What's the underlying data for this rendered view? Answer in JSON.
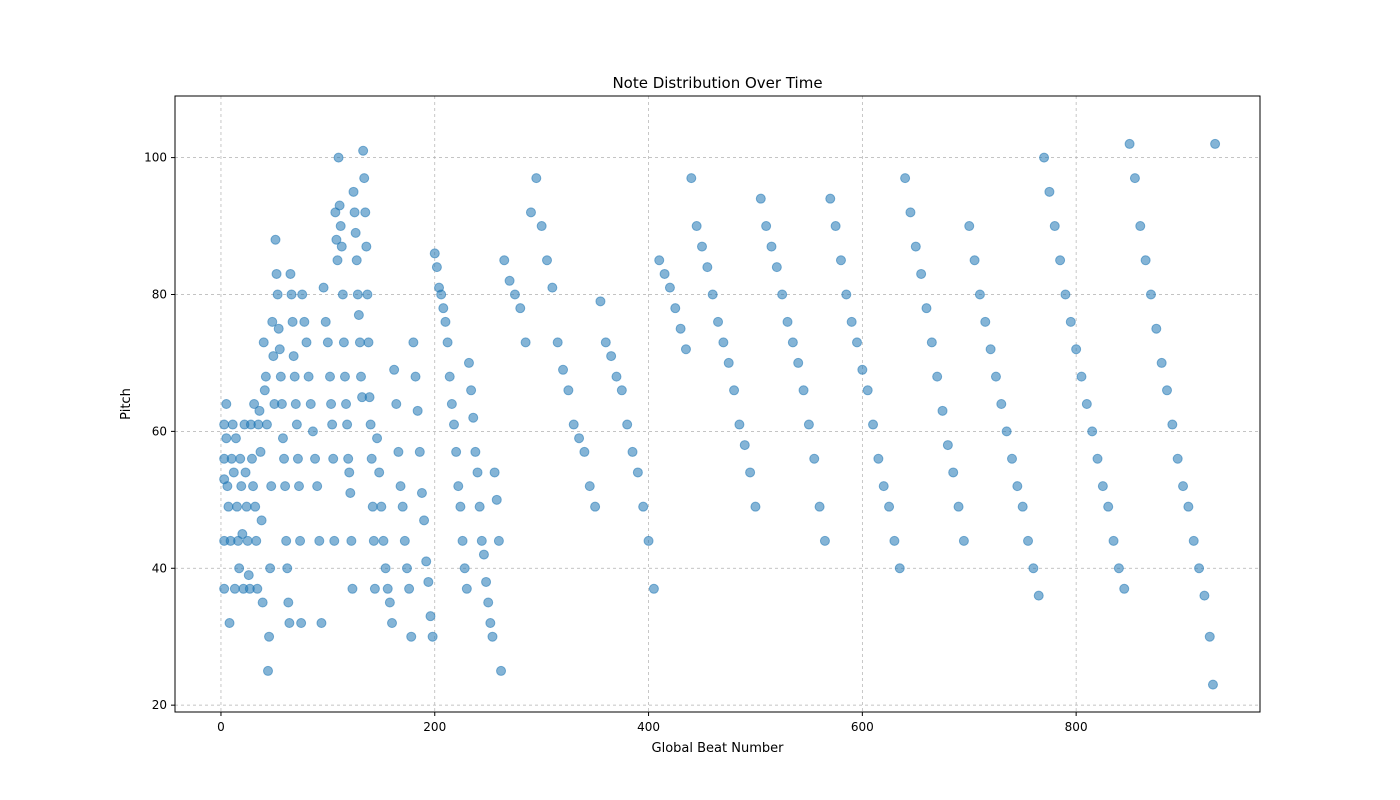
{
  "chart_data": {
    "type": "scatter",
    "title": "Note Distribution Over Time",
    "xlabel": "Global Beat Number",
    "ylabel": "Pitch",
    "xlim": [
      -43,
      972
    ],
    "ylim": [
      19,
      109
    ],
    "xticks": [
      0,
      200,
      400,
      600,
      800
    ],
    "yticks": [
      20,
      40,
      60,
      80,
      100
    ],
    "x_tick_labels": [
      "0",
      "200",
      "400",
      "600",
      "800"
    ],
    "y_tick_labels": [
      "20",
      "40",
      "60",
      "80",
      "100"
    ],
    "grid": true,
    "marker_color": "#1f77b4",
    "marker_alpha": 0.55,
    "series": [
      {
        "points": [
          [
            3,
            61
          ],
          [
            3,
            56
          ],
          [
            3,
            53
          ],
          [
            3,
            44
          ],
          [
            3,
            37
          ],
          [
            5,
            64
          ],
          [
            5,
            59
          ],
          [
            6,
            52
          ],
          [
            7,
            49
          ],
          [
            8,
            32
          ],
          [
            9,
            44
          ],
          [
            10,
            56
          ],
          [
            11,
            61
          ],
          [
            12,
            54
          ],
          [
            13,
            37
          ],
          [
            14,
            59
          ],
          [
            15,
            49
          ],
          [
            16,
            44
          ],
          [
            17,
            40
          ],
          [
            18,
            56
          ],
          [
            19,
            52
          ],
          [
            20,
            45
          ],
          [
            21,
            37
          ],
          [
            22,
            61
          ],
          [
            23,
            54
          ],
          [
            24,
            49
          ],
          [
            25,
            44
          ],
          [
            26,
            39
          ],
          [
            27,
            37
          ],
          [
            28,
            61
          ],
          [
            29,
            56
          ],
          [
            30,
            52
          ],
          [
            31,
            64
          ],
          [
            32,
            49
          ],
          [
            33,
            44
          ],
          [
            34,
            37
          ],
          [
            35,
            61
          ],
          [
            36,
            63
          ],
          [
            37,
            57
          ],
          [
            38,
            47
          ],
          [
            39,
            35
          ],
          [
            40,
            73
          ],
          [
            41,
            66
          ],
          [
            42,
            68
          ],
          [
            43,
            61
          ],
          [
            44,
            25
          ],
          [
            45,
            30
          ],
          [
            46,
            40
          ],
          [
            47,
            52
          ],
          [
            48,
            76
          ],
          [
            49,
            71
          ],
          [
            50,
            64
          ],
          [
            51,
            88
          ],
          [
            52,
            83
          ],
          [
            53,
            80
          ],
          [
            54,
            75
          ],
          [
            55,
            72
          ],
          [
            56,
            68
          ],
          [
            57,
            64
          ],
          [
            58,
            59
          ],
          [
            59,
            56
          ],
          [
            60,
            52
          ],
          [
            61,
            44
          ],
          [
            62,
            40
          ],
          [
            63,
            35
          ],
          [
            64,
            32
          ],
          [
            65,
            83
          ],
          [
            66,
            80
          ],
          [
            67,
            76
          ],
          [
            68,
            71
          ],
          [
            69,
            68
          ],
          [
            70,
            64
          ],
          [
            71,
            61
          ],
          [
            72,
            56
          ],
          [
            73,
            52
          ],
          [
            74,
            44
          ],
          [
            75,
            32
          ],
          [
            76,
            80
          ],
          [
            78,
            76
          ],
          [
            80,
            73
          ],
          [
            82,
            68
          ],
          [
            84,
            64
          ],
          [
            86,
            60
          ],
          [
            88,
            56
          ],
          [
            90,
            52
          ],
          [
            92,
            44
          ],
          [
            94,
            32
          ],
          [
            96,
            81
          ],
          [
            98,
            76
          ],
          [
            100,
            73
          ],
          [
            102,
            68
          ],
          [
            103,
            64
          ],
          [
            104,
            61
          ],
          [
            105,
            56
          ],
          [
            106,
            44
          ],
          [
            107,
            92
          ],
          [
            108,
            88
          ],
          [
            109,
            85
          ],
          [
            110,
            100
          ],
          [
            111,
            93
          ],
          [
            112,
            90
          ],
          [
            113,
            87
          ],
          [
            114,
            80
          ],
          [
            115,
            73
          ],
          [
            116,
            68
          ],
          [
            117,
            64
          ],
          [
            118,
            61
          ],
          [
            119,
            56
          ],
          [
            120,
            54
          ],
          [
            121,
            51
          ],
          [
            122,
            44
          ],
          [
            123,
            37
          ],
          [
            124,
            95
          ],
          [
            125,
            92
          ],
          [
            126,
            89
          ],
          [
            127,
            85
          ],
          [
            128,
            80
          ],
          [
            129,
            77
          ],
          [
            130,
            73
          ],
          [
            131,
            68
          ],
          [
            132,
            65
          ],
          [
            133,
            101
          ],
          [
            134,
            97
          ],
          [
            135,
            92
          ],
          [
            136,
            87
          ],
          [
            137,
            80
          ],
          [
            138,
            73
          ],
          [
            139,
            65
          ],
          [
            140,
            61
          ],
          [
            141,
            56
          ],
          [
            142,
            49
          ],
          [
            143,
            44
          ],
          [
            144,
            37
          ],
          [
            146,
            59
          ],
          [
            148,
            54
          ],
          [
            150,
            49
          ],
          [
            152,
            44
          ],
          [
            154,
            40
          ],
          [
            156,
            37
          ],
          [
            158,
            35
          ],
          [
            160,
            32
          ],
          [
            162,
            69
          ],
          [
            164,
            64
          ],
          [
            166,
            57
          ],
          [
            168,
            52
          ],
          [
            170,
            49
          ],
          [
            172,
            44
          ],
          [
            174,
            40
          ],
          [
            176,
            37
          ],
          [
            178,
            30
          ],
          [
            180,
            73
          ],
          [
            182,
            68
          ],
          [
            184,
            63
          ],
          [
            186,
            57
          ],
          [
            188,
            51
          ],
          [
            190,
            47
          ],
          [
            192,
            41
          ],
          [
            194,
            38
          ],
          [
            196,
            33
          ],
          [
            198,
            30
          ],
          [
            200,
            86
          ],
          [
            202,
            84
          ],
          [
            204,
            81
          ],
          [
            206,
            80
          ],
          [
            208,
            78
          ],
          [
            210,
            76
          ],
          [
            212,
            73
          ],
          [
            214,
            68
          ],
          [
            216,
            64
          ],
          [
            218,
            61
          ],
          [
            220,
            57
          ],
          [
            222,
            52
          ],
          [
            224,
            49
          ],
          [
            226,
            44
          ],
          [
            228,
            40
          ],
          [
            230,
            37
          ],
          [
            232,
            70
          ],
          [
            234,
            66
          ],
          [
            236,
            62
          ],
          [
            238,
            57
          ],
          [
            240,
            54
          ],
          [
            242,
            49
          ],
          [
            244,
            44
          ],
          [
            246,
            42
          ],
          [
            248,
            38
          ],
          [
            250,
            35
          ],
          [
            252,
            32
          ],
          [
            254,
            30
          ],
          [
            256,
            54
          ],
          [
            258,
            50
          ],
          [
            260,
            44
          ],
          [
            262,
            25
          ],
          [
            265,
            85
          ],
          [
            270,
            82
          ],
          [
            275,
            80
          ],
          [
            280,
            78
          ],
          [
            285,
            73
          ],
          [
            290,
            92
          ],
          [
            295,
            97
          ],
          [
            300,
            90
          ],
          [
            305,
            85
          ],
          [
            310,
            81
          ],
          [
            315,
            73
          ],
          [
            320,
            69
          ],
          [
            325,
            66
          ],
          [
            330,
            61
          ],
          [
            335,
            59
          ],
          [
            340,
            57
          ],
          [
            345,
            52
          ],
          [
            350,
            49
          ],
          [
            355,
            79
          ],
          [
            360,
            73
          ],
          [
            365,
            71
          ],
          [
            370,
            68
          ],
          [
            375,
            66
          ],
          [
            380,
            61
          ],
          [
            385,
            57
          ],
          [
            390,
            54
          ],
          [
            395,
            49
          ],
          [
            400,
            44
          ],
          [
            405,
            37
          ],
          [
            410,
            85
          ],
          [
            415,
            83
          ],
          [
            420,
            81
          ],
          [
            425,
            78
          ],
          [
            430,
            75
          ],
          [
            435,
            72
          ],
          [
            440,
            97
          ],
          [
            445,
            90
          ],
          [
            450,
            87
          ],
          [
            455,
            84
          ],
          [
            460,
            80
          ],
          [
            465,
            76
          ],
          [
            470,
            73
          ],
          [
            475,
            70
          ],
          [
            480,
            66
          ],
          [
            485,
            61
          ],
          [
            490,
            58
          ],
          [
            495,
            54
          ],
          [
            500,
            49
          ],
          [
            505,
            94
          ],
          [
            510,
            90
          ],
          [
            515,
            87
          ],
          [
            520,
            84
          ],
          [
            525,
            80
          ],
          [
            530,
            76
          ],
          [
            535,
            73
          ],
          [
            540,
            70
          ],
          [
            545,
            66
          ],
          [
            550,
            61
          ],
          [
            555,
            56
          ],
          [
            560,
            49
          ],
          [
            565,
            44
          ],
          [
            570,
            94
          ],
          [
            575,
            90
          ],
          [
            580,
            85
          ],
          [
            585,
            80
          ],
          [
            590,
            76
          ],
          [
            595,
            73
          ],
          [
            600,
            69
          ],
          [
            605,
            66
          ],
          [
            610,
            61
          ],
          [
            615,
            56
          ],
          [
            620,
            52
          ],
          [
            625,
            49
          ],
          [
            630,
            44
          ],
          [
            635,
            40
          ],
          [
            640,
            97
          ],
          [
            645,
            92
          ],
          [
            650,
            87
          ],
          [
            655,
            83
          ],
          [
            660,
            78
          ],
          [
            665,
            73
          ],
          [
            670,
            68
          ],
          [
            675,
            63
          ],
          [
            680,
            58
          ],
          [
            685,
            54
          ],
          [
            690,
            49
          ],
          [
            695,
            44
          ],
          [
            700,
            90
          ],
          [
            705,
            85
          ],
          [
            710,
            80
          ],
          [
            715,
            76
          ],
          [
            720,
            72
          ],
          [
            725,
            68
          ],
          [
            730,
            64
          ],
          [
            735,
            60
          ],
          [
            740,
            56
          ],
          [
            745,
            52
          ],
          [
            750,
            49
          ],
          [
            755,
            44
          ],
          [
            760,
            40
          ],
          [
            765,
            36
          ],
          [
            770,
            100
          ],
          [
            775,
            95
          ],
          [
            780,
            90
          ],
          [
            785,
            85
          ],
          [
            790,
            80
          ],
          [
            795,
            76
          ],
          [
            800,
            72
          ],
          [
            805,
            68
          ],
          [
            810,
            64
          ],
          [
            815,
            60
          ],
          [
            820,
            56
          ],
          [
            825,
            52
          ],
          [
            830,
            49
          ],
          [
            835,
            44
          ],
          [
            840,
            40
          ],
          [
            845,
            37
          ],
          [
            850,
            102
          ],
          [
            855,
            97
          ],
          [
            860,
            90
          ],
          [
            865,
            85
          ],
          [
            870,
            80
          ],
          [
            875,
            75
          ],
          [
            880,
            70
          ],
          [
            885,
            66
          ],
          [
            890,
            61
          ],
          [
            895,
            56
          ],
          [
            900,
            52
          ],
          [
            905,
            49
          ],
          [
            910,
            44
          ],
          [
            915,
            40
          ],
          [
            920,
            36
          ],
          [
            925,
            30
          ],
          [
            928,
            23
          ],
          [
            930,
            102
          ]
        ]
      }
    ]
  }
}
